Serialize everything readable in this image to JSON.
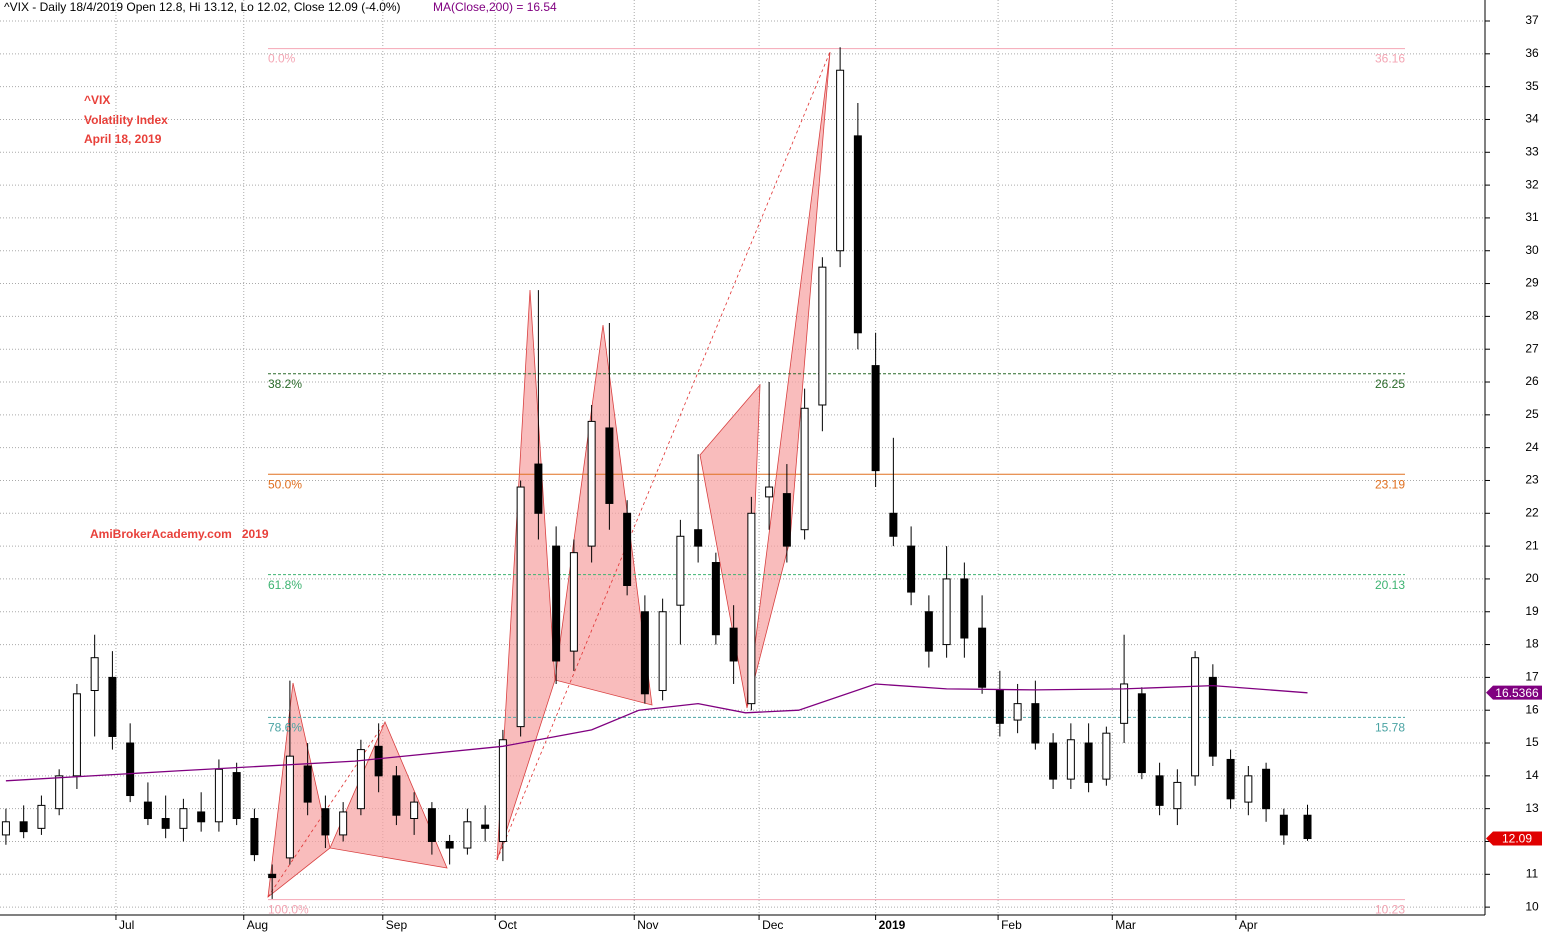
{
  "chart_data": {
    "type": "candlestick",
    "header": "^VIX - Daily 18/4/2019 Open 12.8, Hi 13.12, Lo 12.02, Close 12.09 (-4.0%)",
    "header_ma": "MA(Close,200) = 16.54",
    "annotations": [
      "^VIX",
      "Volatility Index",
      "April 18, 2019"
    ],
    "watermark": "AmiBrokerAcademy.com   2019",
    "xlim": [
      0,
      251
    ],
    "xticks": [
      {
        "value": 19.6,
        "label": "Jul"
      },
      {
        "value": 41.2,
        "label": "Aug"
      },
      {
        "value": 64.7,
        "label": "Sep"
      },
      {
        "value": 83.7,
        "label": "Oct"
      },
      {
        "value": 107.2,
        "label": "Nov"
      },
      {
        "value": 128.3,
        "label": "Dec"
      },
      {
        "value": 148,
        "label": "2019"
      },
      {
        "value": 168.7,
        "label": "Feb"
      },
      {
        "value": 188,
        "label": "Mar"
      },
      {
        "value": 208.9,
        "label": "Apr"
      }
    ],
    "ylim": [
      9.76,
      37.64
    ],
    "yticks": [
      10,
      11,
      12,
      13,
      14,
      15,
      16,
      17,
      18,
      19,
      20,
      21,
      22,
      23,
      24,
      25,
      26,
      27,
      28,
      29,
      30,
      31,
      32,
      33,
      34,
      35,
      36,
      37
    ],
    "grid": true,
    "x": [
      1,
      4,
      7,
      10,
      13,
      16,
      19,
      22,
      25,
      28,
      31,
      34,
      37,
      40,
      43,
      46,
      49,
      52,
      55,
      58,
      61,
      64,
      67,
      70,
      73,
      76,
      79,
      82,
      85,
      88,
      91,
      94,
      97,
      100,
      103,
      106,
      109,
      112,
      115,
      118,
      121,
      124,
      127,
      130,
      133,
      136,
      139,
      142,
      145,
      148,
      151,
      154,
      157,
      160,
      163,
      166,
      169,
      172,
      175,
      178,
      181,
      184,
      187,
      190,
      193,
      196,
      199,
      202,
      205,
      208,
      211,
      214,
      217,
      221
    ],
    "open": [
      12.2,
      12.6,
      12.4,
      13.0,
      14.0,
      16.6,
      17.0,
      15.0,
      13.2,
      12.7,
      12.4,
      12.9,
      12.6,
      14.1,
      12.7,
      11.0,
      11.5,
      14.3,
      13.0,
      12.2,
      13.0,
      14.9,
      14.0,
      12.7,
      13.0,
      12.0,
      11.8,
      12.5,
      12.0,
      15.5,
      23.5,
      21.0,
      17.8,
      21.0,
      24.6,
      22.0,
      19.0,
      16.6,
      19.2,
      21.5,
      20.5,
      18.5,
      16.2,
      22.5,
      22.6,
      21.5,
      25.3,
      30.0,
      33.5,
      26.5,
      22.0,
      21.0,
      19.0,
      18.0,
      20.0,
      18.5,
      16.6,
      15.7,
      16.2,
      15.0,
      13.9,
      15.0,
      13.9,
      15.6,
      16.5,
      14.0,
      13.0,
      14.0,
      17.0,
      14.5,
      13.2,
      14.2,
      12.8,
      12.8
    ],
    "high": [
      13.0,
      13.1,
      13.4,
      14.2,
      16.8,
      18.3,
      17.8,
      15.6,
      13.8,
      13.4,
      13.3,
      13.5,
      14.5,
      14.4,
      13.0,
      11.3,
      16.9,
      15.0,
      13.4,
      13.2,
      15.1,
      15.6,
      14.3,
      13.5,
      13.2,
      12.2,
      13.0,
      13.1,
      15.4,
      23.0,
      28.8,
      21.6,
      21.2,
      25.3,
      27.8,
      22.4,
      19.5,
      19.4,
      21.8,
      23.8,
      20.8,
      19.2,
      22.5,
      26.0,
      23.5,
      25.8,
      29.8,
      36.2,
      34.5,
      27.5,
      24.3,
      21.6,
      19.5,
      21.0,
      20.5,
      19.5,
      17.2,
      16.8,
      16.9,
      15.3,
      15.6,
      15.6,
      15.5,
      18.3,
      16.7,
      14.4,
      14.2,
      17.8,
      17.4,
      14.8,
      14.3,
      14.4,
      13.0,
      13.12
    ],
    "low": [
      11.9,
      12.1,
      12.2,
      12.8,
      13.6,
      15.2,
      14.8,
      13.2,
      12.5,
      12.1,
      12.0,
      12.3,
      12.3,
      12.5,
      11.4,
      10.25,
      11.3,
      12.8,
      11.8,
      12.0,
      12.8,
      13.5,
      12.5,
      12.2,
      11.6,
      11.3,
      11.6,
      12.0,
      11.4,
      15.2,
      21.2,
      16.8,
      17.2,
      20.5,
      21.5,
      19.5,
      16.2,
      16.3,
      18.0,
      20.5,
      18.0,
      16.8,
      16.0,
      21.5,
      20.5,
      21.2,
      24.5,
      29.5,
      27.0,
      22.8,
      21.0,
      19.2,
      17.3,
      17.6,
      17.6,
      16.5,
      15.2,
      15.3,
      14.8,
      13.6,
      13.6,
      13.5,
      13.7,
      15.0,
      13.9,
      12.8,
      12.5,
      13.7,
      14.3,
      13.0,
      12.8,
      12.6,
      11.9,
      12.02
    ],
    "close": [
      12.6,
      12.3,
      13.1,
      14.0,
      16.5,
      17.6,
      15.2,
      13.4,
      12.7,
      12.4,
      13.0,
      12.6,
      14.2,
      12.7,
      11.6,
      10.9,
      14.6,
      13.2,
      12.2,
      12.9,
      14.8,
      14.0,
      12.8,
      13.2,
      12.0,
      11.8,
      12.6,
      12.4,
      15.1,
      22.8,
      22.0,
      17.5,
      20.8,
      24.8,
      22.3,
      19.8,
      16.5,
      19.0,
      21.3,
      21.0,
      18.3,
      17.5,
      22.0,
      22.8,
      21.0,
      25.2,
      29.5,
      35.5,
      27.5,
      23.3,
      21.3,
      19.6,
      17.8,
      20.0,
      18.2,
      16.7,
      15.6,
      16.2,
      15.0,
      13.9,
      15.1,
      13.8,
      15.3,
      16.8,
      14.1,
      13.1,
      13.8,
      17.6,
      14.6,
      13.3,
      14.0,
      13.0,
      12.2,
      12.09
    ],
    "ma": {
      "name": "MA(Close,200)",
      "color": "#800080",
      "x": [
        1,
        30,
        60,
        85,
        100,
        108,
        118,
        126,
        135,
        148,
        160,
        175,
        190,
        205,
        221
      ],
      "values": [
        13.85,
        14.15,
        14.45,
        14.9,
        15.4,
        16.0,
        16.2,
        15.92,
        16.0,
        16.8,
        16.65,
        16.62,
        16.65,
        16.75,
        16.53
      ]
    },
    "fib_levels": [
      {
        "label": "0.0%",
        "value": 36.16,
        "color": "#f4a6b4"
      },
      {
        "label": "38.2%",
        "value": 26.25,
        "color": "#2a6a2a"
      },
      {
        "label": "50.0%",
        "value": 23.19,
        "color": "#e07020"
      },
      {
        "label": "61.8%",
        "value": 20.13,
        "color": "#3cb371"
      },
      {
        "label": "78.6%",
        "value": 15.78,
        "color": "#4aa3a3"
      },
      {
        "label": "100.0%",
        "value": 10.23,
        "color": "#f4a6b4"
      }
    ],
    "price_tags": [
      {
        "value": 16.5366,
        "color": "#800080"
      },
      {
        "value": 12.09,
        "color": "#e00000"
      }
    ]
  }
}
